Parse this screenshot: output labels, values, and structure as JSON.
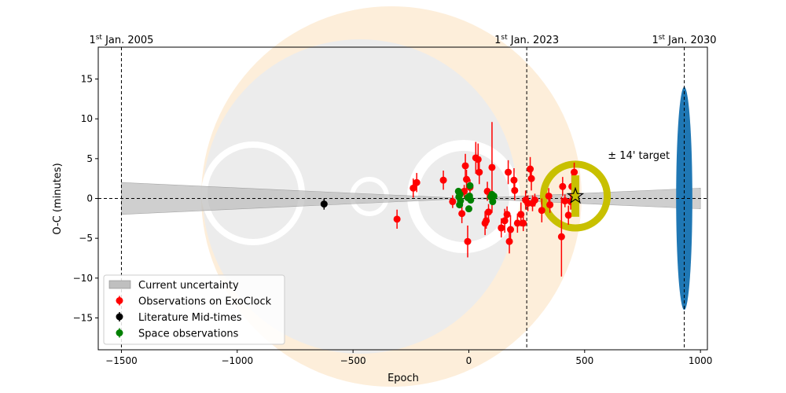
{
  "chart_data": {
    "type": "scatter",
    "xlabel": "Epoch",
    "ylabel": "O-C (minutes)",
    "xlim": [
      -1600,
      1030
    ],
    "ylim": [
      -19,
      19
    ],
    "xticks": [
      -1500,
      -1000,
      -500,
      0,
      500,
      1000
    ],
    "yticks": [
      -15,
      -10,
      -5,
      0,
      5,
      10,
      15
    ],
    "xtick_labels": [
      "−1500",
      "−1000",
      "−500",
      "0",
      "500",
      "1000"
    ],
    "ytick_labels": [
      "−15",
      "−10",
      "−5",
      "0",
      "5",
      "10",
      "15"
    ],
    "date_markers": [
      {
        "x": -1500,
        "prefix": "1",
        "sup": "st",
        "suffix": " Jan. 2005"
      },
      {
        "x": 250,
        "prefix": "1",
        "sup": "st",
        "suffix": " Jan. 2023"
      },
      {
        "x": 930,
        "prefix": "1",
        "sup": "st",
        "suffix": " Jan. 2030"
      }
    ],
    "uncertainty_band": {
      "name": "Current uncertainty",
      "x": [
        -1500,
        0,
        1000
      ],
      "upper": [
        2.0,
        0.0,
        1.3
      ],
      "lower": [
        -2.0,
        0.0,
        -1.3
      ],
      "color": "#bfbfbf"
    },
    "future_uncertainty_ellipse": {
      "x": 930,
      "y": 0,
      "half_width_epochs": 35,
      "half_height_minutes": 14,
      "color": "#1f77b4"
    },
    "target_annotation": {
      "text": "± 14' target",
      "x": 600,
      "y": 5.5
    },
    "target_marker": {
      "x": 460,
      "y": 0.3,
      "ring_radius_minutes": 4,
      "bar_half_height_minutes": 2.6,
      "ring_color": "#c8c000",
      "bar_color": "#c8c000",
      "star_color": "#000000"
    },
    "series": [
      {
        "name": "Observations on ExoClock",
        "color": "#ff0000",
        "points": [
          [
            -310,
            -2.6,
            1.2
          ],
          [
            -240,
            1.3,
            1.2
          ],
          [
            -225,
            2.0,
            1.2
          ],
          [
            -110,
            2.3,
            1.2
          ],
          [
            -70,
            -0.4,
            0.8
          ],
          [
            -30,
            -1.9,
            1.2
          ],
          [
            -20,
            0.9,
            0.8
          ],
          [
            -15,
            4.1,
            1.5
          ],
          [
            -10,
            2.4,
            1.2
          ],
          [
            -5,
            -5.4,
            2.0
          ],
          [
            5,
            1.4,
            1.0
          ],
          [
            30,
            5.1,
            2.0
          ],
          [
            40,
            4.9,
            2.0
          ],
          [
            45,
            3.3,
            1.5
          ],
          [
            70,
            -3.1,
            1.5
          ],
          [
            75,
            -2.8,
            1.0
          ],
          [
            80,
            0.9,
            1.2
          ],
          [
            85,
            -1.7,
            1.0
          ],
          [
            100,
            3.9,
            5.7
          ],
          [
            140,
            -3.7,
            1.2
          ],
          [
            155,
            -2.8,
            1.5
          ],
          [
            165,
            -2.0,
            1.0
          ],
          [
            170,
            3.3,
            1.5
          ],
          [
            175,
            -5.4,
            1.5
          ],
          [
            180,
            -3.9,
            1.8
          ],
          [
            195,
            2.3,
            1.5
          ],
          [
            198,
            1.0,
            1.2
          ],
          [
            210,
            -3.1,
            1.2
          ],
          [
            225,
            -2.0,
            1.5
          ],
          [
            235,
            -3.1,
            1.0
          ],
          [
            245,
            -0.2,
            1.2
          ],
          [
            255,
            -0.6,
            1.0
          ],
          [
            265,
            3.7,
            1.5
          ],
          [
            270,
            2.5,
            1.5
          ],
          [
            275,
            -0.6,
            1.0
          ],
          [
            285,
            -0.2,
            0.8
          ],
          [
            315,
            -1.5,
            1.5
          ],
          [
            345,
            0.3,
            1.0
          ],
          [
            400,
            -4.8,
            5.0
          ],
          [
            415,
            -0.3,
            0.8
          ],
          [
            430,
            -2.1,
            1.2
          ],
          [
            440,
            -0.4,
            1.0
          ],
          [
            445,
            1.5,
            1.5
          ],
          [
            455,
            3.3,
            1.2
          ],
          [
            405,
            1.5,
            1.2
          ],
          [
            350,
            -0.8,
            1.0
          ]
        ]
      },
      {
        "name": "Literature Mid-times",
        "color": "#000000",
        "points": [
          [
            -625,
            -0.7,
            0.7
          ]
        ]
      },
      {
        "name": "Space observations",
        "color": "#008000",
        "points": [
          [
            -45,
            0.9,
            0.4
          ],
          [
            -43,
            0.2,
            0.4
          ],
          [
            -40,
            -0.8,
            0.4
          ],
          [
            -38,
            0.5,
            0.4
          ],
          [
            -36,
            -0.3,
            0.4
          ],
          [
            -5,
            0.1,
            0.4
          ],
          [
            0,
            -1.3,
            0.4
          ],
          [
            3,
            0.3,
            0.4
          ],
          [
            5,
            1.6,
            0.4
          ],
          [
            8,
            -0.2,
            0.4
          ],
          [
            95,
            0.2,
            0.4
          ],
          [
            100,
            0.5,
            0.4
          ],
          [
            103,
            -0.4,
            0.4
          ],
          [
            108,
            0.3,
            0.4
          ]
        ]
      }
    ],
    "legend": {
      "placement": "lower-left",
      "entries": [
        "Current uncertainty",
        "Observations on ExoClock",
        "Literature Mid-times",
        "Space observations"
      ]
    }
  }
}
